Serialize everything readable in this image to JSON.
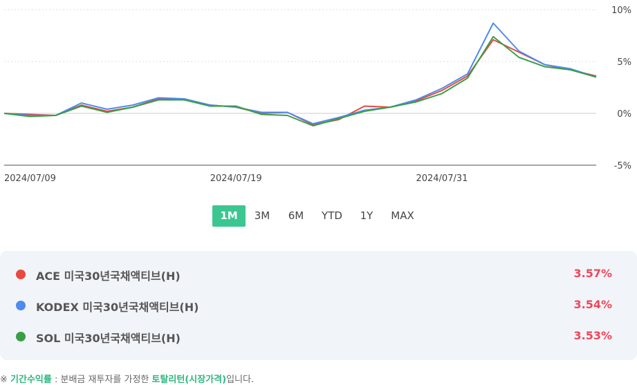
{
  "chart_data": {
    "type": "line",
    "categories": [
      "2024/07/09",
      null,
      null,
      null,
      null,
      null,
      null,
      null,
      "2024/07/19",
      null,
      null,
      null,
      null,
      null,
      null,
      null,
      "2024/07/31",
      null,
      null,
      null,
      null,
      null,
      null,
      null
    ],
    "series": [
      {
        "name": "ACE 미국30년국채액티브(H)",
        "color": "#e8483f",
        "total_return": "3.57%",
        "values": [
          0,
          -0.1,
          -0.2,
          0.8,
          0.2,
          0.6,
          1.4,
          1.3,
          0.8,
          0.6,
          0.0,
          0.1,
          -1.1,
          -0.6,
          0.7,
          0.6,
          1.2,
          2.2,
          3.6,
          7.1,
          5.9,
          4.7,
          4.2,
          3.6
        ]
      },
      {
        "name": "KODEX 미국30년국채액티브(H)",
        "color": "#4e8af0",
        "total_return": "3.54%",
        "values": [
          0,
          -0.2,
          -0.2,
          1.0,
          0.4,
          0.8,
          1.5,
          1.4,
          0.8,
          0.6,
          0.1,
          0.1,
          -1.0,
          -0.4,
          0.3,
          0.6,
          1.3,
          2.4,
          3.8,
          8.7,
          6.0,
          4.7,
          4.3,
          3.5
        ]
      },
      {
        "name": "SOL 미국30년국채액티브(H)",
        "color": "#3a9e48",
        "total_return": "3.53%",
        "values": [
          0,
          -0.3,
          -0.2,
          0.7,
          0.1,
          0.6,
          1.3,
          1.3,
          0.7,
          0.7,
          -0.1,
          -0.2,
          -1.2,
          -0.5,
          0.2,
          0.6,
          1.1,
          1.9,
          3.4,
          7.4,
          5.4,
          4.5,
          4.2,
          3.5
        ]
      }
    ],
    "ylim": [
      -5,
      10
    ],
    "yticks": [
      {
        "value": -5,
        "label": "-5%"
      },
      {
        "value": 0,
        "label": "0%"
      },
      {
        "value": 5,
        "label": "5%"
      },
      {
        "value": 10,
        "label": "10%"
      }
    ],
    "grid": true
  },
  "periods": [
    "1M",
    "3M",
    "6M",
    "YTD",
    "1Y",
    "MAX"
  ],
  "selected_period_index": 0,
  "footnote": {
    "symbol": "※",
    "term": "기간수익률",
    "text": " : 분배금 재투자를 가정한 ",
    "term2": "토탈리턴(시장가격)",
    "tail": "입니다."
  }
}
